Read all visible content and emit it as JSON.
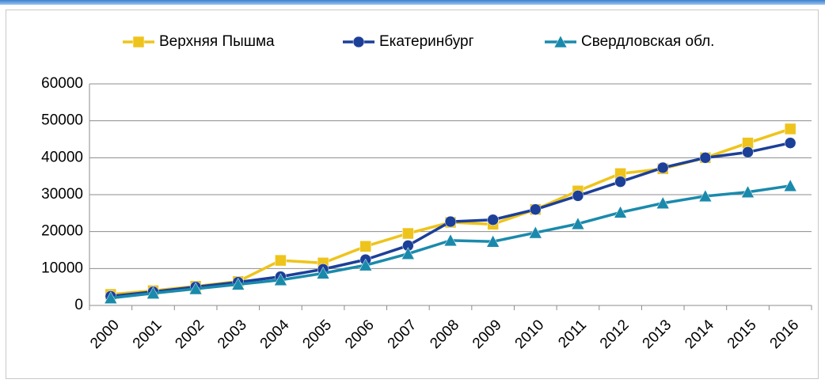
{
  "chart_data": {
    "type": "line",
    "categories": [
      "2000",
      "2001",
      "2002",
      "2003",
      "2004",
      "2005",
      "2006",
      "2007",
      "2008",
      "2009",
      "2010",
      "2011",
      "2012",
      "2013",
      "2014",
      "2015",
      "2016"
    ],
    "series": [
      {
        "name": "Верхняя Пышма",
        "color": "#eec41c",
        "marker": "square",
        "values": [
          3000,
          4000,
          5200,
          6500,
          12200,
          11500,
          16000,
          19500,
          22500,
          22000,
          26000,
          31000,
          35700,
          37000,
          40000,
          44000,
          47800
        ]
      },
      {
        "name": "Екатеринбург",
        "color": "#1c3f98",
        "marker": "circle",
        "values": [
          2500,
          3700,
          5000,
          6300,
          7800,
          9800,
          12400,
          16200,
          22700,
          23200,
          26000,
          29700,
          33500,
          37300,
          40000,
          41500,
          44000
        ]
      },
      {
        "name": "Свердловская обл.",
        "color": "#1a8aac",
        "marker": "triangle",
        "values": [
          2000,
          3300,
          4500,
          5700,
          6900,
          8700,
          10900,
          14000,
          17600,
          17300,
          19700,
          22100,
          25200,
          27700,
          29600,
          30700,
          32400
        ]
      }
    ],
    "ylim": [
      0,
      60000
    ],
    "yticks": [
      0,
      10000,
      20000,
      30000,
      40000,
      50000,
      60000
    ],
    "grid": true,
    "legend": "top"
  }
}
